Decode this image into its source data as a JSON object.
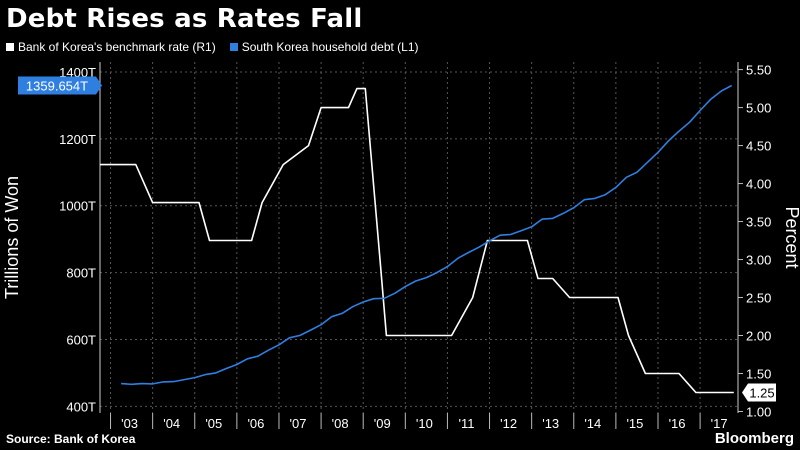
{
  "header": {
    "title": "Debt Rises as Rates Fall"
  },
  "footer": {
    "source": "Source: Bank of Korea",
    "brand": "Bloomberg"
  },
  "colors": {
    "background": "#000000",
    "rate": "#ffffff",
    "debt": "#2f7fe0",
    "grid": "#555555"
  },
  "chart_data": {
    "type": "line",
    "title": "Debt Rises as Rates Fall",
    "ylabel_left": "Trillions of Won",
    "ylabel_right": "Percent",
    "ylim_left": [
      380,
      1430
    ],
    "ylim_right": [
      0.98,
      5.6
    ],
    "yticks_left": [
      "400T",
      "600T",
      "800T",
      "1000T",
      "1200T",
      "1400T"
    ],
    "yticks_left_values": [
      400,
      600,
      800,
      1000,
      1200,
      1400
    ],
    "yticks_right": [
      "1.00",
      "1.50",
      "2.00",
      "2.50",
      "3.00",
      "3.50",
      "4.00",
      "4.50",
      "5.00",
      "5.50"
    ],
    "yticks_right_values": [
      1.0,
      1.5,
      2.0,
      2.5,
      3.0,
      3.5,
      4.0,
      4.5,
      5.0,
      5.5
    ],
    "xlim": [
      2002.25,
      2017.4
    ],
    "xticks": [
      "'03",
      "'04",
      "'05",
      "'06",
      "'07",
      "'08",
      "'09",
      "'10",
      "'11",
      "'12",
      "'13",
      "'14",
      "'15",
      "'16",
      "'17"
    ],
    "xticks_values": [
      2003,
      2004,
      2005,
      2006,
      2007,
      2008,
      2009,
      2010,
      2011,
      2012,
      2013,
      2014,
      2015,
      2016,
      2017
    ],
    "grid": true,
    "legend_position": "top-left",
    "series": [
      {
        "name": "Bank of Korea's benchmark rate  (R1)",
        "axis": "right",
        "x": [
          2002.25,
          2003.1,
          2003.5,
          2004.6,
          2004.85,
          2005.85,
          2006.1,
          2006.6,
          2007.2,
          2007.5,
          2008.15,
          2008.35,
          2008.55,
          2008.9,
          2009.05,
          2010.6,
          2011.1,
          2011.45,
          2012.4,
          2012.65,
          2013.0,
          2013.4,
          2014.55,
          2014.8,
          2015.2,
          2016.0,
          2016.4,
          2017.3
        ],
        "values": [
          4.25,
          4.25,
          3.75,
          3.75,
          3.25,
          3.25,
          3.75,
          4.25,
          4.5,
          5.0,
          5.0,
          5.25,
          5.25,
          3.0,
          2.0,
          2.0,
          2.5,
          3.25,
          3.25,
          2.75,
          2.75,
          2.5,
          2.5,
          2.0,
          1.5,
          1.5,
          1.25,
          1.25
        ]
      },
      {
        "name": "South Korea household debt  (L1)",
        "axis": "left",
        "x": [
          2002.75,
          2003.0,
          2003.25,
          2003.5,
          2003.75,
          2004.0,
          2004.25,
          2004.5,
          2004.75,
          2005.0,
          2005.25,
          2005.5,
          2005.75,
          2006.0,
          2006.25,
          2006.5,
          2006.75,
          2007.0,
          2007.25,
          2007.5,
          2007.75,
          2008.0,
          2008.25,
          2008.5,
          2008.75,
          2009.0,
          2009.25,
          2009.5,
          2009.75,
          2010.0,
          2010.25,
          2010.5,
          2010.75,
          2011.0,
          2011.25,
          2011.5,
          2011.75,
          2012.0,
          2012.25,
          2012.5,
          2012.75,
          2013.0,
          2013.25,
          2013.5,
          2013.75,
          2014.0,
          2014.25,
          2014.5,
          2014.75,
          2015.0,
          2015.25,
          2015.5,
          2015.75,
          2016.0,
          2016.25,
          2016.5,
          2016.75,
          2017.0,
          2017.25
        ],
        "values": [
          468,
          466,
          468,
          467,
          473,
          474,
          480,
          486,
          495,
          500,
          513,
          525,
          542,
          550,
          568,
          584,
          605,
          612,
          628,
          644,
          668,
          678,
          698,
          712,
          722,
          723,
          738,
          758,
          775,
          785,
          800,
          818,
          843,
          860,
          876,
          895,
          912,
          914,
          925,
          937,
          960,
          962,
          977,
          994,
          1018,
          1022,
          1033,
          1055,
          1085,
          1100,
          1130,
          1160,
          1194,
          1223,
          1250,
          1285,
          1318,
          1343,
          1359.654
        ]
      }
    ],
    "annotations": [
      {
        "label": "1359.654T",
        "axis": "left",
        "value": 1359.654,
        "color": "#2f7fe0",
        "side": "left"
      },
      {
        "label": "1.25",
        "axis": "right",
        "value": 1.25,
        "color": "#ffffff",
        "side": "right"
      }
    ]
  }
}
